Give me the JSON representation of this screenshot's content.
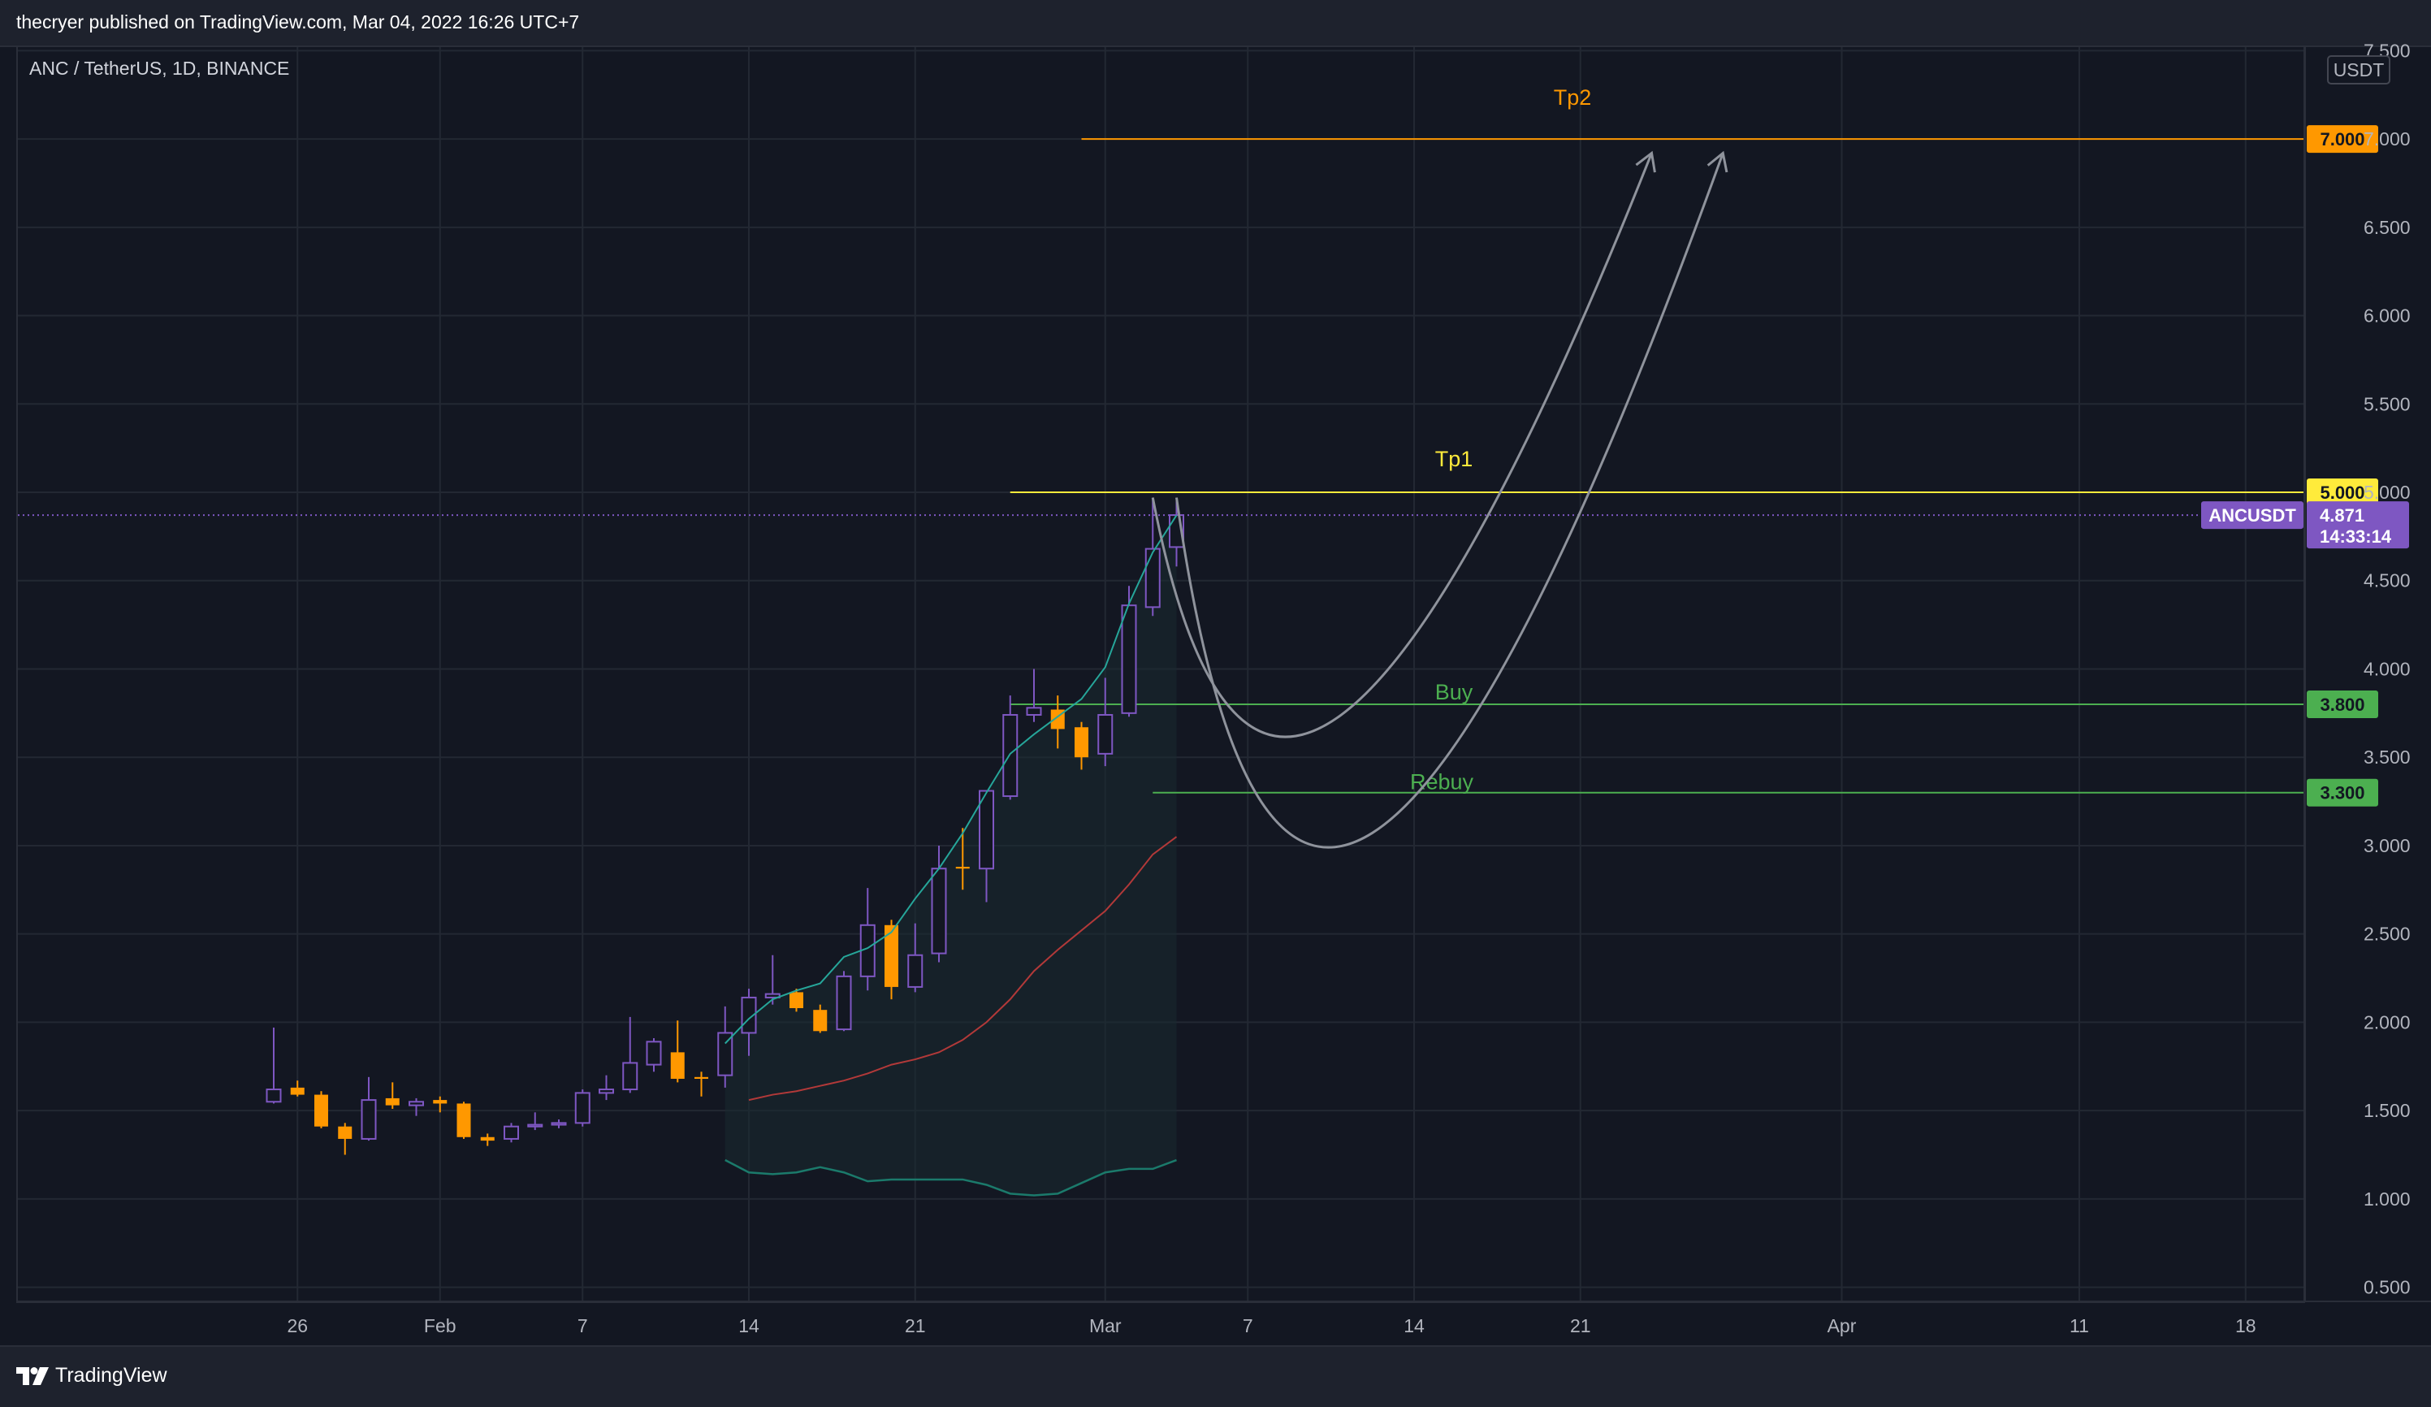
{
  "header": {
    "publish_text": "thecryer published on TradingView.com, Mar 04, 2022 16:26 UTC+7"
  },
  "footer": {
    "brand": "TradingView"
  },
  "chart_data": {
    "type": "candlestick",
    "symbol_title": "ANC / TetherUS, 1D, BINANCE",
    "currency": "USDT",
    "ticker": "ANCUSDT",
    "y_axis": {
      "range": [
        0.42,
        7.52
      ],
      "ticks": [
        "7.500",
        "7.000",
        "6.500",
        "6.000",
        "5.500",
        "5.000",
        "4.500",
        "4.000",
        "3.500",
        "3.000",
        "2.500",
        "2.000",
        "1.500",
        "1.000",
        "0.500"
      ]
    },
    "x_axis": {
      "ticks": [
        {
          "label": "26",
          "date": "2022-01-26"
        },
        {
          "label": "Feb",
          "date": "2022-02-01"
        },
        {
          "label": "7",
          "date": "2022-02-07"
        },
        {
          "label": "14",
          "date": "2022-02-14"
        },
        {
          "label": "21",
          "date": "2022-02-21"
        },
        {
          "label": "Mar",
          "date": "2022-03-01"
        },
        {
          "label": "7",
          "date": "2022-03-07"
        },
        {
          "label": "14",
          "date": "2022-03-14"
        },
        {
          "label": "21",
          "date": "2022-03-21"
        },
        {
          "label": "Apr",
          "date": "2022-04-01"
        },
        {
          "label": "11",
          "date": "2022-04-11"
        },
        {
          "label": "18",
          "date": "2022-04-18"
        }
      ]
    },
    "candles": [
      {
        "date": "2022-01-25",
        "o": 1.55,
        "h": 1.97,
        "l": 1.54,
        "c": 1.62
      },
      {
        "date": "2022-01-26",
        "o": 1.63,
        "h": 1.67,
        "l": 1.58,
        "c": 1.59
      },
      {
        "date": "2022-01-27",
        "o": 1.59,
        "h": 1.61,
        "l": 1.4,
        "c": 1.41
      },
      {
        "date": "2022-01-28",
        "o": 1.41,
        "h": 1.43,
        "l": 1.25,
        "c": 1.34
      },
      {
        "date": "2022-01-29",
        "o": 1.34,
        "h": 1.69,
        "l": 1.33,
        "c": 1.56
      },
      {
        "date": "2022-01-30",
        "o": 1.57,
        "h": 1.66,
        "l": 1.51,
        "c": 1.53
      },
      {
        "date": "2022-01-31",
        "o": 1.53,
        "h": 1.57,
        "l": 1.47,
        "c": 1.55
      },
      {
        "date": "2022-02-01",
        "o": 1.56,
        "h": 1.58,
        "l": 1.49,
        "c": 1.54
      },
      {
        "date": "2022-02-02",
        "o": 1.54,
        "h": 1.55,
        "l": 1.34,
        "c": 1.35
      },
      {
        "date": "2022-02-03",
        "o": 1.35,
        "h": 1.37,
        "l": 1.3,
        "c": 1.33
      },
      {
        "date": "2022-02-04",
        "o": 1.34,
        "h": 1.43,
        "l": 1.32,
        "c": 1.41
      },
      {
        "date": "2022-02-05",
        "o": 1.41,
        "h": 1.49,
        "l": 1.39,
        "c": 1.42
      },
      {
        "date": "2022-02-06",
        "o": 1.42,
        "h": 1.45,
        "l": 1.4,
        "c": 1.43
      },
      {
        "date": "2022-02-07",
        "o": 1.43,
        "h": 1.62,
        "l": 1.41,
        "c": 1.6
      },
      {
        "date": "2022-02-08",
        "o": 1.6,
        "h": 1.7,
        "l": 1.56,
        "c": 1.62
      },
      {
        "date": "2022-02-09",
        "o": 1.62,
        "h": 2.03,
        "l": 1.6,
        "c": 1.77
      },
      {
        "date": "2022-02-10",
        "o": 1.76,
        "h": 1.91,
        "l": 1.72,
        "c": 1.89
      },
      {
        "date": "2022-02-11",
        "o": 1.83,
        "h": 2.01,
        "l": 1.66,
        "c": 1.68
      },
      {
        "date": "2022-02-12",
        "o": 1.69,
        "h": 1.72,
        "l": 1.58,
        "c": 1.68
      },
      {
        "date": "2022-02-13",
        "o": 1.7,
        "h": 2.09,
        "l": 1.63,
        "c": 1.94
      },
      {
        "date": "2022-02-14",
        "o": 1.94,
        "h": 2.19,
        "l": 1.81,
        "c": 2.14
      },
      {
        "date": "2022-02-15",
        "o": 2.14,
        "h": 2.38,
        "l": 2.1,
        "c": 2.16
      },
      {
        "date": "2022-02-16",
        "o": 2.17,
        "h": 2.19,
        "l": 2.06,
        "c": 2.08
      },
      {
        "date": "2022-02-17",
        "o": 2.07,
        "h": 2.1,
        "l": 1.94,
        "c": 1.95
      },
      {
        "date": "2022-02-18",
        "o": 1.96,
        "h": 2.29,
        "l": 1.95,
        "c": 2.26
      },
      {
        "date": "2022-02-19",
        "o": 2.26,
        "h": 2.76,
        "l": 2.18,
        "c": 2.55
      },
      {
        "date": "2022-02-20",
        "o": 2.55,
        "h": 2.58,
        "l": 2.13,
        "c": 2.2
      },
      {
        "date": "2022-02-21",
        "o": 2.2,
        "h": 2.56,
        "l": 2.17,
        "c": 2.38
      },
      {
        "date": "2022-02-22",
        "o": 2.39,
        "h": 3.0,
        "l": 2.34,
        "c": 2.87
      },
      {
        "date": "2022-02-23",
        "o": 2.88,
        "h": 3.1,
        "l": 2.75,
        "c": 2.87
      },
      {
        "date": "2022-02-24",
        "o": 2.87,
        "h": 3.29,
        "l": 2.68,
        "c": 3.31
      },
      {
        "date": "2022-02-25",
        "o": 3.28,
        "h": 3.85,
        "l": 3.26,
        "c": 3.74
      },
      {
        "date": "2022-02-26",
        "o": 3.74,
        "h": 4.0,
        "l": 3.7,
        "c": 3.78
      },
      {
        "date": "2022-02-27",
        "o": 3.77,
        "h": 3.85,
        "l": 3.55,
        "c": 3.66
      },
      {
        "date": "2022-02-28",
        "o": 3.67,
        "h": 3.7,
        "l": 3.43,
        "c": 3.5
      },
      {
        "date": "2022-03-01",
        "o": 3.52,
        "h": 3.95,
        "l": 3.45,
        "c": 3.74
      },
      {
        "date": "2022-03-02",
        "o": 3.75,
        "h": 4.47,
        "l": 3.73,
        "c": 4.36
      },
      {
        "date": "2022-03-03",
        "o": 4.35,
        "h": 4.97,
        "l": 4.3,
        "c": 4.68
      },
      {
        "date": "2022-03-04",
        "o": 4.69,
        "h": 4.97,
        "l": 4.58,
        "c": 4.871
      }
    ],
    "sma_fast": [
      1.88,
      2.02,
      2.13,
      2.18,
      2.22,
      2.37,
      2.42,
      2.51,
      2.7,
      2.87,
      3.07,
      3.3,
      3.52,
      3.63,
      3.73,
      3.83,
      4.01,
      4.37,
      4.66,
      4.87
    ],
    "sma_slow": [
      1.56,
      1.59,
      1.61,
      1.64,
      1.67,
      1.71,
      1.76,
      1.79,
      1.83,
      1.9,
      2.0,
      2.13,
      2.29,
      2.41,
      2.52,
      2.63,
      2.78,
      2.95,
      3.05
    ],
    "lower_band": [
      1.22,
      1.15,
      1.14,
      1.15,
      1.18,
      1.15,
      1.1,
      1.11,
      1.11,
      1.11,
      1.11,
      1.08,
      1.03,
      1.02,
      1.03,
      1.09,
      1.15,
      1.17,
      1.17,
      1.22
    ],
    "levels": [
      {
        "label": "Tp2",
        "price": 7.0,
        "price_label": "7.000",
        "color": "#ff9800",
        "start_date": "2022-02-28"
      },
      {
        "label": "Tp1",
        "price": 5.0,
        "price_label": "5.000",
        "color": "#ffeb3b",
        "start_date": "2022-02-25"
      },
      {
        "label": "Buy",
        "price": 3.8,
        "price_label": "3.800",
        "color": "#4caf50",
        "start_date": "2022-02-25"
      },
      {
        "label": "Rebuy",
        "price": 3.3,
        "price_label": "3.300",
        "color": "#4caf50",
        "start_date": "2022-03-03"
      }
    ],
    "current_price": {
      "value": 4.871,
      "label": "4.871",
      "countdown": "14:33:14",
      "color": "#7e57c2"
    },
    "projections": [
      {
        "start": [
          "2022-03-03",
          4.97
        ],
        "control": [
          "2022-03-08",
          1.5
        ],
        "end": [
          "2022-03-24",
          6.92
        ]
      },
      {
        "start": [
          "2022-03-04",
          4.97
        ],
        "control": [
          "2022-03-09",
          0.2
        ],
        "end": [
          "2022-03-27",
          6.92
        ]
      }
    ],
    "colors": {
      "up": "#7e57c2",
      "down": "#ff9800",
      "sma_fast": "#26a69a",
      "sma_slow": "#b23939",
      "band": "#1b7a6b",
      "grid": "#232833"
    },
    "grid": true
  }
}
